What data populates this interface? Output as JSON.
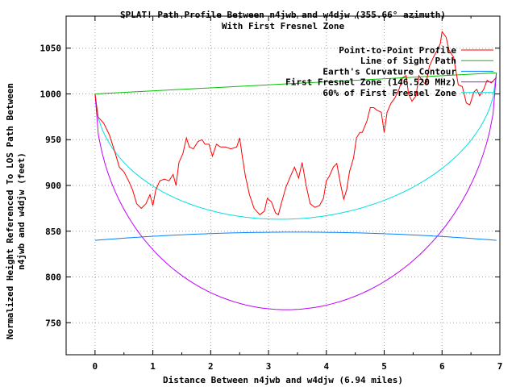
{
  "chart_data": {
    "type": "line",
    "title": "SPLAT! Path Profile Between n4jwb and w4djw (355.66° azimuth)",
    "subtitle": "With First Fresnel Zone",
    "xlabel": "Distance Between n4jwb and w4djw (6.94 miles)",
    "ylabel": [
      "Normalized Height Referenced To LOS Path Between",
      "n4jwb and w4djw (feet)"
    ],
    "xlim": [
      -0.5,
      7
    ],
    "ylim": [
      715,
      1085
    ],
    "x_ticks": [
      "0",
      "1",
      "2",
      "3",
      "4",
      "5",
      "6",
      "7"
    ],
    "y_ticks": [
      "750",
      "800",
      "850",
      "900",
      "950",
      "1000",
      "1050"
    ],
    "grid": true,
    "legend_position": "top-right",
    "series": [
      {
        "name": "Point-to-Point Profile",
        "color": "#ff0000",
        "points": [
          [
            0,
            1000
          ],
          [
            0.05,
            975
          ],
          [
            0.15,
            968
          ],
          [
            0.25,
            955
          ],
          [
            0.35,
            935
          ],
          [
            0.42,
            920
          ],
          [
            0.5,
            915
          ],
          [
            0.58,
            905
          ],
          [
            0.65,
            895
          ],
          [
            0.72,
            880
          ],
          [
            0.8,
            875
          ],
          [
            0.88,
            880
          ],
          [
            0.95,
            890
          ],
          [
            1.0,
            878
          ],
          [
            1.05,
            895
          ],
          [
            1.12,
            905
          ],
          [
            1.2,
            907
          ],
          [
            1.28,
            905
          ],
          [
            1.35,
            912
          ],
          [
            1.4,
            900
          ],
          [
            1.45,
            925
          ],
          [
            1.52,
            935
          ],
          [
            1.58,
            952
          ],
          [
            1.63,
            942
          ],
          [
            1.7,
            940
          ],
          [
            1.78,
            948
          ],
          [
            1.85,
            950
          ],
          [
            1.9,
            945
          ],
          [
            1.97,
            945
          ],
          [
            2.03,
            932
          ],
          [
            2.1,
            945
          ],
          [
            2.17,
            942
          ],
          [
            2.25,
            942
          ],
          [
            2.35,
            940
          ],
          [
            2.45,
            942
          ],
          [
            2.5,
            952
          ],
          [
            2.55,
            930
          ],
          [
            2.6,
            910
          ],
          [
            2.67,
            890
          ],
          [
            2.75,
            875
          ],
          [
            2.85,
            868
          ],
          [
            2.93,
            872
          ],
          [
            2.98,
            886
          ],
          [
            3.05,
            882
          ],
          [
            3.12,
            870
          ],
          [
            3.17,
            868
          ],
          [
            3.22,
            880
          ],
          [
            3.3,
            898
          ],
          [
            3.38,
            910
          ],
          [
            3.45,
            920
          ],
          [
            3.52,
            908
          ],
          [
            3.58,
            925
          ],
          [
            3.65,
            900
          ],
          [
            3.72,
            880
          ],
          [
            3.8,
            876
          ],
          [
            3.88,
            878
          ],
          [
            3.95,
            886
          ],
          [
            4.0,
            905
          ],
          [
            4.05,
            910
          ],
          [
            4.12,
            920
          ],
          [
            4.18,
            924
          ],
          [
            4.25,
            900
          ],
          [
            4.3,
            885
          ],
          [
            4.35,
            895
          ],
          [
            4.4,
            915
          ],
          [
            4.47,
            930
          ],
          [
            4.52,
            952
          ],
          [
            4.58,
            958
          ],
          [
            4.62,
            958
          ],
          [
            4.7,
            970
          ],
          [
            4.76,
            985
          ],
          [
            4.82,
            985
          ],
          [
            4.88,
            982
          ],
          [
            4.95,
            980
          ],
          [
            5.0,
            958
          ],
          [
            5.05,
            980
          ],
          [
            5.12,
            990
          ],
          [
            5.18,
            995
          ],
          [
            5.25,
            1004
          ],
          [
            5.32,
            1018
          ],
          [
            5.38,
            1020
          ],
          [
            5.42,
            1000
          ],
          [
            5.48,
            992
          ],
          [
            5.55,
            998
          ],
          [
            5.6,
            1020
          ],
          [
            5.65,
            1015
          ],
          [
            5.72,
            1010
          ],
          [
            5.78,
            1030
          ],
          [
            5.85,
            1040
          ],
          [
            5.92,
            1048
          ],
          [
            5.97,
            1055
          ],
          [
            6.0,
            1068
          ],
          [
            6.07,
            1062
          ],
          [
            6.12,
            1048
          ],
          [
            6.2,
            1040
          ],
          [
            6.28,
            1010
          ],
          [
            6.35,
            1008
          ],
          [
            6.42,
            990
          ],
          [
            6.48,
            988
          ],
          [
            6.55,
            1002
          ],
          [
            6.6,
            1005
          ],
          [
            6.65,
            998
          ],
          [
            6.72,
            1005
          ],
          [
            6.78,
            1015
          ],
          [
            6.85,
            1012
          ],
          [
            6.94,
            1018
          ]
        ]
      },
      {
        "name": "Line of Sight Path",
        "color": "#00c000",
        "points": [
          [
            0,
            1000
          ],
          [
            6.94,
            1023
          ]
        ]
      },
      {
        "name": "Earth's Curvature Contour",
        "color": "#0080ff",
        "function": "curvature",
        "start": 840,
        "end": 840,
        "mid": 849
      },
      {
        "name": "First Fresnel Zone (146.520 MHz)",
        "color": "#c000ff",
        "function": "fresnel",
        "radius": 247
      },
      {
        "name": "60% of First Fresnel Zone",
        "color": "#00e0e0",
        "function": "fresnel",
        "radius": 148
      }
    ]
  }
}
